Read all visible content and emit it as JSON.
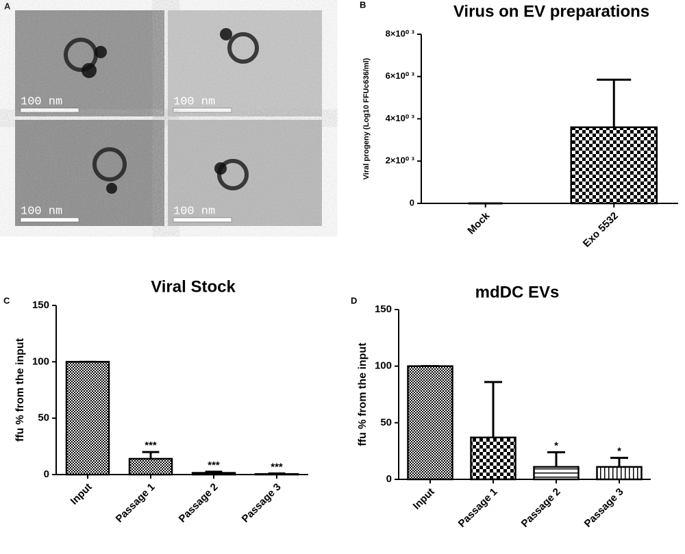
{
  "panel_a": {
    "label": "A",
    "tiles": [
      {
        "scale_label": "100 nm"
      },
      {
        "scale_label": "100 nm"
      },
      {
        "scale_label": "100 nm"
      },
      {
        "scale_label": "100 nm"
      }
    ]
  },
  "chart_data": [
    {
      "type": "bar",
      "panel": "B",
      "title": "Virus on EV preparations",
      "y_label": "Viral progeny (Log10 FFUc636/ml)",
      "categories": [
        "Mock",
        "Exo 5532"
      ],
      "values": [
        0,
        3600
      ],
      "errors": [
        0,
        2250
      ],
      "patterns": [
        "check",
        "check"
      ],
      "ylim": [
        0,
        8000
      ],
      "yticks": [
        0,
        {
          "value": 2000,
          "label": "2×10⁰ ³"
        },
        {
          "value": 4000,
          "label": "4×10⁰ ³"
        },
        {
          "value": 6000,
          "label": "6×10⁰ ³"
        },
        {
          "value": 8000,
          "label": "8×10⁰ ³"
        }
      ]
    },
    {
      "type": "bar",
      "panel": "C",
      "title": "Viral Stock",
      "y_label": "ffu % from the input",
      "categories": [
        "Input",
        "Passage 1",
        "Passage 2",
        "Passage 3"
      ],
      "values": [
        100,
        14,
        1.5,
        0.5
      ],
      "errors": [
        0,
        6,
        1,
        0.5
      ],
      "patterns": [
        "fine-check",
        "fine-check",
        "fine-check",
        "fine-check"
      ],
      "annotations": [
        null,
        "***",
        "***",
        "***"
      ],
      "ylim": [
        0,
        150
      ],
      "yticks": [
        0,
        50,
        100,
        150
      ]
    },
    {
      "type": "bar",
      "panel": "D",
      "title": "mdDC EVs",
      "y_label": "ffu % from the input",
      "categories": [
        "Input",
        "Passage 1",
        "Passage 2",
        "Passage 3"
      ],
      "values": [
        100,
        37,
        11,
        11
      ],
      "errors": [
        0,
        49,
        13,
        8
      ],
      "patterns": [
        "fine-check",
        "check",
        "hlines",
        "vlines"
      ],
      "annotations": [
        null,
        null,
        "*",
        "*"
      ],
      "ylim": [
        0,
        150
      ],
      "yticks": [
        0,
        50,
        100,
        150
      ]
    }
  ]
}
